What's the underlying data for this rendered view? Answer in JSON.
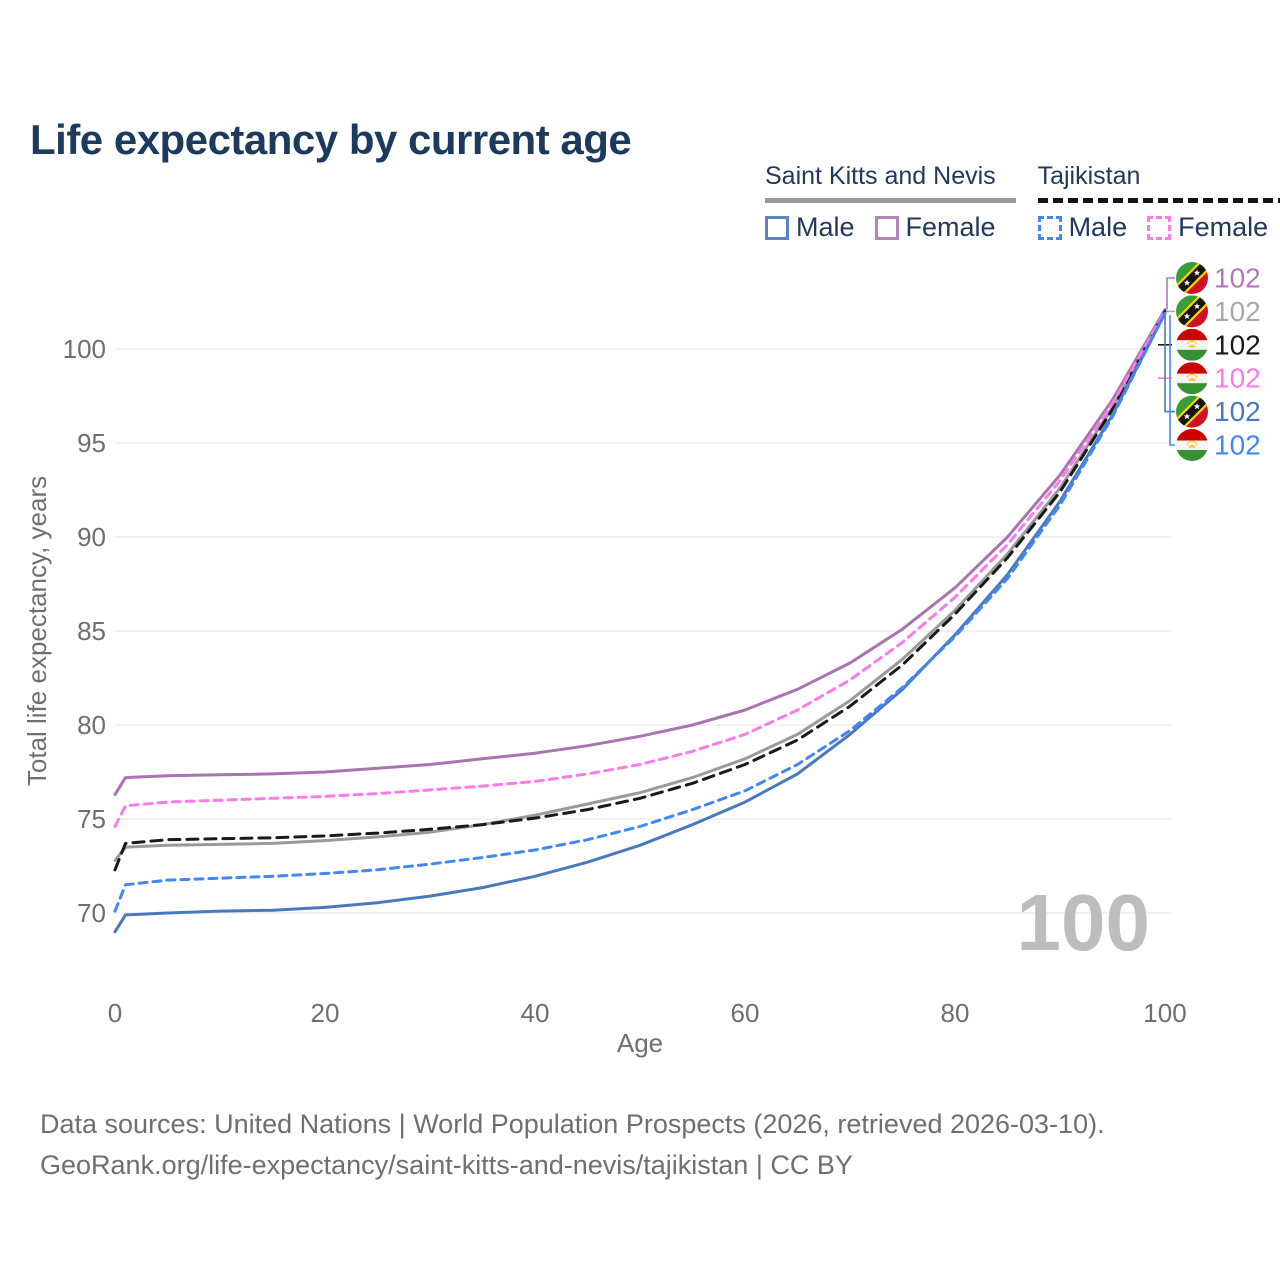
{
  "page": {
    "title": "Life expectancy by current age"
  },
  "legend": {
    "groups": [
      {
        "country": "Saint Kitts and Nevis",
        "line_style": "solid",
        "underline_color": "#9a9a9a",
        "items": [
          {
            "label": "Male",
            "color": "#5b84c4",
            "swatch_style": "solid"
          },
          {
            "label": "Female",
            "color": "#b585b5",
            "swatch_style": "solid"
          }
        ]
      },
      {
        "country": "Tajikistan",
        "line_style": "dashed",
        "underline_color": "#141414",
        "items": [
          {
            "label": "Male",
            "color": "#4287f5",
            "swatch_style": "dashed"
          },
          {
            "label": "Female",
            "color": "#fb7ce8",
            "swatch_style": "dashed"
          }
        ]
      }
    ]
  },
  "footer": {
    "line1": "Data sources: United Nations | World Population Prospects (2026, retrieved 2026-03-10).",
    "line2": "GeoRank.org/life-expectancy/saint-kitts-and-nevis/tajikistan | CC BY"
  },
  "chart_data": {
    "type": "line",
    "title": "Life expectancy by current age",
    "xlabel": "Age",
    "ylabel": "Total life expectancy, years",
    "xlim": [
      0,
      100
    ],
    "ylim": [
      68.5,
      103
    ],
    "x_ticks": [
      0,
      20,
      40,
      60,
      80,
      100
    ],
    "y_ticks": [
      70,
      75,
      80,
      85,
      90,
      95,
      100
    ],
    "grid": "horizontal",
    "legend_position": "top-right",
    "watermark_age_counter": "100",
    "ages": [
      0,
      1,
      5,
      10,
      15,
      20,
      25,
      30,
      35,
      40,
      45,
      50,
      55,
      60,
      65,
      70,
      75,
      80,
      85,
      90,
      95,
      100
    ],
    "series": [
      {
        "id": "skn-female",
        "name": "Saint Kitts and Nevis — Female",
        "country": "Saint Kitts and Nevis",
        "style": "solid",
        "dash": null,
        "color": "#a975b0",
        "flag": "kn",
        "end_label": "102",
        "end_label_color": "#b07ab8",
        "values": [
          76.3,
          77.2,
          77.3,
          77.35,
          77.4,
          77.5,
          77.7,
          77.9,
          78.2,
          78.5,
          78.9,
          79.4,
          80.0,
          80.8,
          81.9,
          83.3,
          85.1,
          87.3,
          90.0,
          93.3,
          97.3,
          102.1
        ]
      },
      {
        "id": "skn-total",
        "name": "Saint Kitts and Nevis — Both sexes",
        "country": "Saint Kitts and Nevis",
        "style": "solid",
        "dash": null,
        "color": "#9a9a9a",
        "flag": "kn",
        "end_label": "102",
        "end_label_color": "#a9a9a9",
        "values": [
          72.8,
          73.5,
          73.6,
          73.65,
          73.7,
          73.85,
          74.05,
          74.3,
          74.7,
          75.2,
          75.8,
          76.4,
          77.2,
          78.2,
          79.5,
          81.3,
          83.5,
          86.1,
          89.1,
          92.6,
          96.9,
          102.0
        ]
      },
      {
        "id": "tjk-total",
        "name": "Tajikistan — Both sexes",
        "country": "Tajikistan",
        "style": "dashed",
        "dash": "11 7",
        "color": "#1a1a1a",
        "flag": "tj",
        "end_label": "102",
        "end_label_color": "#1a1a1a",
        "values": [
          72.3,
          73.7,
          73.9,
          73.95,
          74.0,
          74.1,
          74.25,
          74.45,
          74.7,
          75.05,
          75.5,
          76.1,
          76.9,
          77.9,
          79.2,
          81.0,
          83.2,
          85.9,
          88.9,
          92.4,
          96.8,
          102.0
        ]
      },
      {
        "id": "tjk-female",
        "name": "Tajikistan — Female",
        "country": "Tajikistan",
        "style": "dashed",
        "dash": "8 6",
        "color": "#fb7ce8",
        "flag": "tj",
        "end_label": "102",
        "end_label_color": "#fb7ce8",
        "values": [
          74.6,
          75.7,
          75.9,
          76.0,
          76.1,
          76.2,
          76.35,
          76.55,
          76.75,
          77.0,
          77.4,
          77.9,
          78.6,
          79.5,
          80.8,
          82.4,
          84.4,
          86.8,
          89.6,
          93.0,
          97.1,
          102.0
        ]
      },
      {
        "id": "skn-male",
        "name": "Saint Kitts and Nevis — Male",
        "country": "Saint Kitts and Nevis",
        "style": "solid",
        "dash": null,
        "color": "#4a79bd",
        "flag": "kn",
        "end_label": "102",
        "end_label_color": "#4a79bd",
        "values": [
          69.0,
          69.9,
          70.0,
          70.1,
          70.15,
          70.3,
          70.55,
          70.9,
          71.35,
          71.95,
          72.7,
          73.6,
          74.7,
          75.9,
          77.4,
          79.5,
          81.9,
          84.8,
          88.0,
          91.9,
          96.5,
          101.9
        ]
      },
      {
        "id": "tjk-male",
        "name": "Tajikistan — Male",
        "country": "Tajikistan",
        "style": "dashed",
        "dash": "8 6",
        "color": "#4287f5",
        "flag": "tj",
        "end_label": "102",
        "end_label_color": "#4287f5",
        "values": [
          70.1,
          71.5,
          71.75,
          71.85,
          71.95,
          72.1,
          72.3,
          72.6,
          72.95,
          73.35,
          73.9,
          74.6,
          75.5,
          76.5,
          77.9,
          79.7,
          82.0,
          84.7,
          87.8,
          91.7,
          96.4,
          101.9
        ]
      }
    ]
  }
}
